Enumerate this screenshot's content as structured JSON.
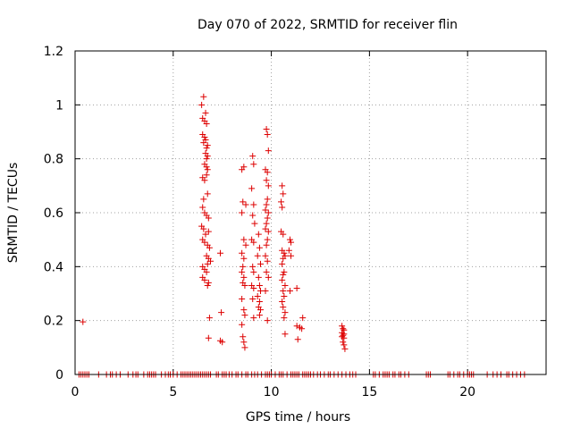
{
  "chart_data": {
    "type": "scatter",
    "title": "Day 070 of 2022, SRMTID for receiver flin",
    "xlabel": "GPS time / hours",
    "ylabel": "SRMTID / TECUs",
    "xlim": [
      0,
      24
    ],
    "ylim": [
      0,
      1.2
    ],
    "xticks": [
      0,
      5,
      10,
      15,
      20
    ],
    "xtick_labels": [
      "0",
      "5",
      "10",
      "15",
      "20"
    ],
    "yticks": [
      0,
      0.2,
      0.4,
      0.6,
      0.8,
      1,
      1.2
    ],
    "ytick_labels": [
      "0",
      "0.2",
      "0.4",
      "0.6",
      "0.8",
      "1",
      "1.2"
    ],
    "grid": true,
    "marker": "+",
    "color": "#dd0000",
    "series": [
      {
        "name": "SRMTID",
        "points": [
          [
            0.4,
            0.195
          ],
          [
            6.45,
            1.0
          ],
          [
            6.55,
            1.03
          ],
          [
            6.5,
            0.95
          ],
          [
            6.65,
            0.97
          ],
          [
            6.6,
            0.94
          ],
          [
            6.7,
            0.93
          ],
          [
            6.5,
            0.89
          ],
          [
            6.6,
            0.88
          ],
          [
            6.65,
            0.87
          ],
          [
            6.75,
            0.85
          ],
          [
            6.7,
            0.84
          ],
          [
            6.55,
            0.86
          ],
          [
            6.65,
            0.82
          ],
          [
            6.75,
            0.81
          ],
          [
            6.7,
            0.8
          ],
          [
            6.6,
            0.78
          ],
          [
            6.7,
            0.77
          ],
          [
            6.75,
            0.76
          ],
          [
            6.5,
            0.73
          ],
          [
            6.6,
            0.72
          ],
          [
            6.7,
            0.74
          ],
          [
            6.75,
            0.67
          ],
          [
            6.55,
            0.65
          ],
          [
            6.5,
            0.62
          ],
          [
            6.6,
            0.6
          ],
          [
            6.7,
            0.59
          ],
          [
            6.8,
            0.58
          ],
          [
            6.45,
            0.55
          ],
          [
            6.55,
            0.54
          ],
          [
            6.65,
            0.52
          ],
          [
            6.8,
            0.53
          ],
          [
            6.5,
            0.5
          ],
          [
            6.6,
            0.49
          ],
          [
            6.75,
            0.48
          ],
          [
            6.85,
            0.47
          ],
          [
            6.7,
            0.44
          ],
          [
            6.8,
            0.43
          ],
          [
            6.9,
            0.42
          ],
          [
            6.75,
            0.41
          ],
          [
            6.5,
            0.4
          ],
          [
            6.6,
            0.39
          ],
          [
            6.7,
            0.38
          ],
          [
            6.5,
            0.36
          ],
          [
            6.6,
            0.35
          ],
          [
            6.8,
            0.34
          ],
          [
            6.75,
            0.33
          ],
          [
            6.85,
            0.21
          ],
          [
            6.8,
            0.135
          ],
          [
            7.4,
            0.45
          ],
          [
            7.45,
            0.23
          ],
          [
            7.4,
            0.125
          ],
          [
            7.5,
            0.12
          ],
          [
            8.5,
            0.76
          ],
          [
            8.6,
            0.77
          ],
          [
            8.55,
            0.64
          ],
          [
            8.7,
            0.63
          ],
          [
            8.5,
            0.6
          ],
          [
            8.6,
            0.5
          ],
          [
            8.7,
            0.48
          ],
          [
            8.5,
            0.45
          ],
          [
            8.6,
            0.43
          ],
          [
            8.55,
            0.4
          ],
          [
            8.5,
            0.38
          ],
          [
            8.6,
            0.36
          ],
          [
            8.55,
            0.34
          ],
          [
            8.65,
            0.33
          ],
          [
            8.5,
            0.28
          ],
          [
            8.6,
            0.24
          ],
          [
            8.65,
            0.22
          ],
          [
            8.5,
            0.185
          ],
          [
            8.55,
            0.14
          ],
          [
            8.6,
            0.12
          ],
          [
            8.65,
            0.1
          ],
          [
            9.05,
            0.81
          ],
          [
            9.1,
            0.78
          ],
          [
            9.0,
            0.69
          ],
          [
            9.1,
            0.63
          ],
          [
            9.05,
            0.59
          ],
          [
            9.15,
            0.56
          ],
          [
            9.0,
            0.5
          ],
          [
            9.1,
            0.49
          ],
          [
            9.05,
            0.4
          ],
          [
            9.1,
            0.38
          ],
          [
            9.0,
            0.33
          ],
          [
            9.1,
            0.32
          ],
          [
            9.05,
            0.28
          ],
          [
            9.1,
            0.21
          ],
          [
            9.35,
            0.52
          ],
          [
            9.4,
            0.47
          ],
          [
            9.3,
            0.44
          ],
          [
            9.45,
            0.41
          ],
          [
            9.35,
            0.36
          ],
          [
            9.4,
            0.33
          ],
          [
            9.45,
            0.31
          ],
          [
            9.3,
            0.29
          ],
          [
            9.4,
            0.27
          ],
          [
            9.35,
            0.25
          ],
          [
            9.45,
            0.24
          ],
          [
            9.4,
            0.22
          ],
          [
            9.75,
            0.91
          ],
          [
            9.8,
            0.89
          ],
          [
            9.85,
            0.83
          ],
          [
            9.7,
            0.76
          ],
          [
            9.8,
            0.75
          ],
          [
            9.75,
            0.72
          ],
          [
            9.85,
            0.7
          ],
          [
            9.8,
            0.65
          ],
          [
            9.75,
            0.63
          ],
          [
            9.7,
            0.61
          ],
          [
            9.85,
            0.6
          ],
          [
            9.8,
            0.58
          ],
          [
            9.75,
            0.56
          ],
          [
            9.7,
            0.54
          ],
          [
            9.85,
            0.53
          ],
          [
            9.8,
            0.5
          ],
          [
            9.75,
            0.48
          ],
          [
            9.7,
            0.44
          ],
          [
            9.8,
            0.42
          ],
          [
            9.75,
            0.38
          ],
          [
            9.85,
            0.36
          ],
          [
            9.7,
            0.31
          ],
          [
            9.8,
            0.2
          ],
          [
            10.55,
            0.7
          ],
          [
            10.6,
            0.67
          ],
          [
            10.5,
            0.64
          ],
          [
            10.55,
            0.62
          ],
          [
            10.5,
            0.53
          ],
          [
            10.6,
            0.52
          ],
          [
            10.55,
            0.46
          ],
          [
            10.65,
            0.45
          ],
          [
            10.7,
            0.44
          ],
          [
            10.6,
            0.43
          ],
          [
            10.55,
            0.41
          ],
          [
            10.65,
            0.38
          ],
          [
            10.6,
            0.37
          ],
          [
            10.55,
            0.35
          ],
          [
            10.7,
            0.33
          ],
          [
            10.6,
            0.31
          ],
          [
            10.65,
            0.29
          ],
          [
            10.55,
            0.27
          ],
          [
            10.6,
            0.25
          ],
          [
            10.7,
            0.23
          ],
          [
            10.65,
            0.21
          ],
          [
            10.7,
            0.15
          ],
          [
            10.95,
            0.5
          ],
          [
            11.0,
            0.49
          ],
          [
            10.9,
            0.46
          ],
          [
            11.0,
            0.44
          ],
          [
            10.95,
            0.31
          ],
          [
            11.3,
            0.32
          ],
          [
            11.3,
            0.18
          ],
          [
            11.45,
            0.175
          ],
          [
            11.35,
            0.13
          ],
          [
            11.6,
            0.21
          ],
          [
            11.55,
            0.17
          ],
          [
            13.6,
            0.18
          ],
          [
            13.65,
            0.17
          ],
          [
            13.7,
            0.165
          ],
          [
            13.6,
            0.155
          ],
          [
            13.7,
            0.15
          ],
          [
            13.65,
            0.145
          ],
          [
            13.6,
            0.14
          ],
          [
            13.7,
            0.135
          ],
          [
            13.65,
            0.12
          ],
          [
            13.7,
            0.11
          ],
          [
            13.75,
            0.095
          ]
        ]
      }
    ],
    "zero_points_x": [
      0.2,
      0.3,
      0.4,
      0.5,
      0.6,
      0.7,
      1.2,
      1.6,
      1.8,
      1.9,
      2.1,
      2.3,
      2.7,
      2.95,
      3.1,
      3.2,
      3.5,
      3.7,
      3.8,
      3.9,
      4.0,
      4.1,
      4.4,
      4.6,
      4.75,
      4.85,
      5.0,
      5.2,
      5.4,
      5.5,
      5.6,
      5.7,
      5.8,
      5.9,
      6.0,
      6.1,
      6.2,
      6.3,
      6.4,
      6.5,
      6.6,
      6.7,
      6.8,
      6.9,
      7.2,
      7.3,
      7.5,
      7.6,
      7.7,
      7.85,
      8.0,
      8.2,
      8.3,
      8.5,
      8.7,
      8.8,
      9.0,
      9.15,
      9.3,
      9.5,
      9.7,
      9.8,
      9.9,
      10.0,
      10.2,
      10.4,
      10.5,
      10.6,
      10.8,
      11.0,
      11.1,
      11.2,
      11.3,
      11.4,
      11.6,
      11.7,
      11.8,
      11.9,
      12.0,
      12.15,
      12.35,
      12.5,
      12.7,
      12.9,
      13.0,
      13.2,
      13.4,
      13.6,
      13.8,
      14.0,
      14.15,
      14.3,
      15.2,
      15.3,
      15.5,
      15.7,
      15.8,
      15.9,
      16.0,
      16.2,
      16.3,
      16.5,
      16.6,
      16.8,
      17.0,
      17.9,
      18.0,
      18.1,
      19.0,
      19.1,
      19.3,
      19.5,
      19.6,
      19.8,
      20.0,
      20.1,
      20.2,
      20.3,
      21.0,
      21.3,
      21.5,
      21.7,
      22.0,
      22.1,
      22.3,
      22.5,
      22.7,
      22.9
    ]
  }
}
